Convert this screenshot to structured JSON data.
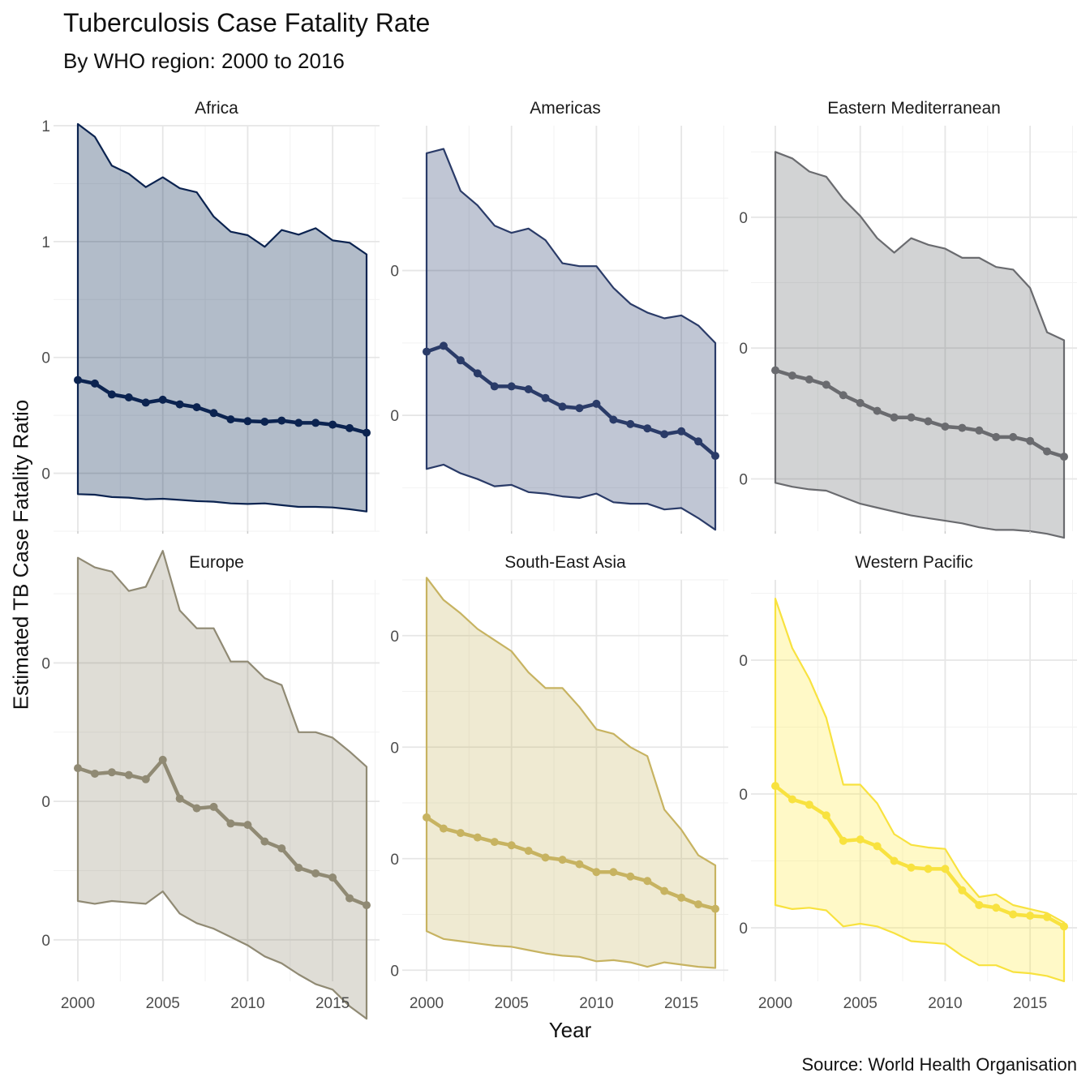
{
  "title": "Tuberculosis Case Fatality Rate",
  "subtitle": "By WHO region: 2000 to 2016",
  "caption": "Source: World Health Organisation",
  "chart_data": {
    "type": "area",
    "title": "Tuberculosis Case Fatality Rate",
    "subtitle": "By WHO region: 2000 to 2016",
    "xlabel": "Year",
    "ylabel": "Estimated TB Case Fatality Ratio",
    "x_ticks": [
      2000,
      2005,
      2010,
      2015
    ],
    "xlim": [
      2000,
      2017
    ],
    "grid": true,
    "legend": "none",
    "facets": [
      {
        "name": "Africa",
        "color": "#00204D",
        "line_color": "#0b2350",
        "y_ticks": [
          0.2,
          0.4,
          0.6,
          0.8
        ],
        "y_tick_labels": [
          "0",
          "0",
          "1",
          "1"
        ],
        "ylim": [
          0.1,
          0.8
        ],
        "x": [
          2000,
          2001,
          2002,
          2003,
          2004,
          2005,
          2006,
          2007,
          2008,
          2009,
          2010,
          2011,
          2012,
          2013,
          2014,
          2015,
          2016,
          2017
        ],
        "estimate": [
          0.361,
          0.355,
          0.336,
          0.331,
          0.322,
          0.327,
          0.319,
          0.314,
          0.304,
          0.293,
          0.29,
          0.289,
          0.291,
          0.287,
          0.287,
          0.284,
          0.278,
          0.27
        ],
        "lower": [
          0.164,
          0.163,
          0.159,
          0.158,
          0.155,
          0.156,
          0.154,
          0.152,
          0.151,
          0.148,
          0.147,
          0.148,
          0.145,
          0.142,
          0.142,
          0.141,
          0.138,
          0.134
        ],
        "upper": [
          0.803,
          0.781,
          0.731,
          0.717,
          0.694,
          0.711,
          0.692,
          0.685,
          0.643,
          0.617,
          0.611,
          0.591,
          0.62,
          0.612,
          0.623,
          0.602,
          0.598,
          0.578
        ]
      },
      {
        "name": "Americas",
        "color": "#2F4272",
        "line_color": "#2a3b68",
        "y_ticks": [
          0.2,
          0.3
        ],
        "y_tick_labels": [
          "0",
          "0"
        ],
        "ylim": [
          0.12,
          0.4
        ],
        "x": [
          2000,
          2001,
          2002,
          2003,
          2004,
          2005,
          2006,
          2007,
          2008,
          2009,
          2010,
          2011,
          2012,
          2013,
          2014,
          2015,
          2016,
          2017
        ],
        "estimate": [
          0.244,
          0.248,
          0.238,
          0.229,
          0.22,
          0.22,
          0.218,
          0.212,
          0.206,
          0.205,
          0.208,
          0.197,
          0.194,
          0.191,
          0.187,
          0.189,
          0.182,
          0.172
        ],
        "lower": [
          0.163,
          0.166,
          0.16,
          0.156,
          0.151,
          0.152,
          0.147,
          0.146,
          0.144,
          0.143,
          0.146,
          0.14,
          0.139,
          0.139,
          0.135,
          0.136,
          0.129,
          0.121
        ],
        "upper": [
          0.381,
          0.384,
          0.355,
          0.345,
          0.331,
          0.326,
          0.329,
          0.321,
          0.305,
          0.303,
          0.303,
          0.288,
          0.277,
          0.271,
          0.267,
          0.269,
          0.262,
          0.25
        ]
      },
      {
        "name": "Eastern Mediterranean",
        "color": "#6B6C70",
        "line_color": "#6a6b6f",
        "y_ticks": [
          0.1,
          0.2,
          0.3
        ],
        "y_tick_labels": [
          "0",
          "0",
          "0"
        ],
        "ylim": [
          0.06,
          0.37
        ],
        "x": [
          2000,
          2001,
          2002,
          2003,
          2004,
          2005,
          2006,
          2007,
          2008,
          2009,
          2010,
          2011,
          2012,
          2013,
          2014,
          2015,
          2016,
          2017
        ],
        "estimate": [
          0.183,
          0.179,
          0.176,
          0.172,
          0.164,
          0.158,
          0.152,
          0.147,
          0.147,
          0.144,
          0.14,
          0.139,
          0.137,
          0.132,
          0.132,
          0.129,
          0.121,
          0.117
        ],
        "lower": [
          0.097,
          0.094,
          0.092,
          0.091,
          0.086,
          0.081,
          0.078,
          0.075,
          0.072,
          0.07,
          0.068,
          0.066,
          0.063,
          0.061,
          0.061,
          0.06,
          0.058,
          0.055
        ],
        "upper": [
          0.35,
          0.345,
          0.335,
          0.331,
          0.314,
          0.301,
          0.284,
          0.273,
          0.284,
          0.279,
          0.276,
          0.269,
          0.269,
          0.262,
          0.26,
          0.246,
          0.212,
          0.206
        ]
      },
      {
        "name": "Europe",
        "color": "#958F78",
        "line_color": "#908a74",
        "y_ticks": [
          0.1,
          0.2,
          0.3
        ],
        "y_tick_labels": [
          "0",
          "0",
          "0"
        ],
        "ylim": [
          0.07,
          0.36
        ],
        "x": [
          2000,
          2001,
          2002,
          2003,
          2004,
          2005,
          2006,
          2007,
          2008,
          2009,
          2010,
          2011,
          2012,
          2013,
          2014,
          2015,
          2016,
          2017
        ],
        "estimate": [
          0.224,
          0.22,
          0.221,
          0.219,
          0.216,
          0.23,
          0.202,
          0.195,
          0.196,
          0.184,
          0.183,
          0.171,
          0.166,
          0.152,
          0.148,
          0.145,
          0.13,
          0.125
        ],
        "lower": [
          0.128,
          0.126,
          0.128,
          0.127,
          0.126,
          0.135,
          0.119,
          0.112,
          0.108,
          0.102,
          0.096,
          0.088,
          0.083,
          0.075,
          0.068,
          0.064,
          0.052,
          0.043
        ],
        "upper": [
          0.376,
          0.369,
          0.366,
          0.352,
          0.355,
          0.381,
          0.338,
          0.325,
          0.325,
          0.301,
          0.301,
          0.289,
          0.284,
          0.25,
          0.25,
          0.246,
          0.236,
          0.225
        ]
      },
      {
        "name": "South-East Asia",
        "color": "#CBBA69",
        "line_color": "#c7b361",
        "y_ticks": [
          0.0,
          0.1,
          0.2,
          0.3
        ],
        "y_tick_labels": [
          "0",
          "0",
          "0",
          "0"
        ],
        "ylim": [
          -0.01,
          0.35
        ],
        "x": [
          2000,
          2001,
          2002,
          2003,
          2004,
          2005,
          2006,
          2007,
          2008,
          2009,
          2010,
          2011,
          2012,
          2013,
          2014,
          2015,
          2016,
          2017
        ],
        "estimate": [
          0.137,
          0.127,
          0.123,
          0.119,
          0.115,
          0.112,
          0.107,
          0.101,
          0.099,
          0.095,
          0.088,
          0.088,
          0.084,
          0.08,
          0.071,
          0.065,
          0.059,
          0.055
        ],
        "lower": [
          0.035,
          0.028,
          0.026,
          0.024,
          0.022,
          0.021,
          0.018,
          0.015,
          0.013,
          0.012,
          0.008,
          0.009,
          0.007,
          0.003,
          0.007,
          0.005,
          0.003,
          0.002
        ],
        "upper": [
          0.352,
          0.332,
          0.32,
          0.306,
          0.296,
          0.286,
          0.267,
          0.253,
          0.253,
          0.236,
          0.216,
          0.212,
          0.2,
          0.192,
          0.144,
          0.126,
          0.103,
          0.094
        ]
      },
      {
        "name": "Western Pacific",
        "color": "#FFEA46",
        "line_color": "#f8e23f",
        "y_ticks": [
          0.1,
          0.2,
          0.3
        ],
        "y_tick_labels": [
          "0",
          "0",
          "0"
        ],
        "ylim": [
          0.06,
          0.36
        ],
        "x": [
          2000,
          2001,
          2002,
          2003,
          2004,
          2005,
          2006,
          2007,
          2008,
          2009,
          2010,
          2011,
          2012,
          2013,
          2014,
          2015,
          2016,
          2017
        ],
        "estimate": [
          0.206,
          0.196,
          0.192,
          0.184,
          0.165,
          0.166,
          0.161,
          0.15,
          0.145,
          0.144,
          0.144,
          0.128,
          0.117,
          0.115,
          0.11,
          0.109,
          0.108,
          0.101
        ],
        "lower": [
          0.117,
          0.114,
          0.115,
          0.113,
          0.101,
          0.103,
          0.101,
          0.096,
          0.09,
          0.089,
          0.088,
          0.079,
          0.072,
          0.072,
          0.067,
          0.066,
          0.064,
          0.06
        ],
        "upper": [
          0.346,
          0.309,
          0.286,
          0.257,
          0.207,
          0.207,
          0.193,
          0.17,
          0.162,
          0.16,
          0.159,
          0.138,
          0.123,
          0.125,
          0.117,
          0.114,
          0.111,
          0.104
        ]
      }
    ]
  }
}
